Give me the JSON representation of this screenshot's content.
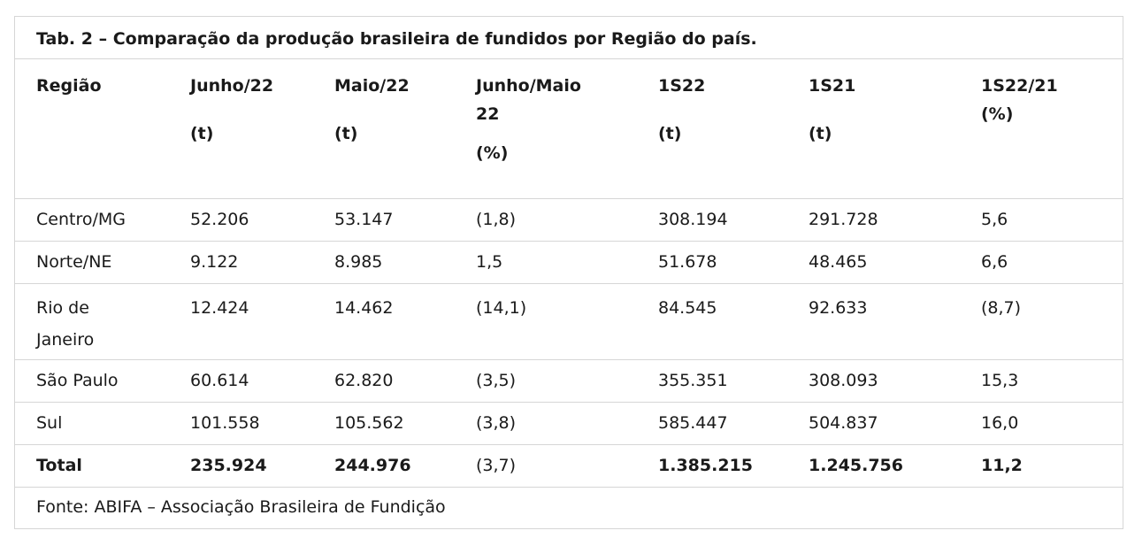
{
  "title": "Tab. 2 – Comparação da produção brasileira de fundidos por Região do país.",
  "headers": {
    "regiao": "Região",
    "junho22": "Junho/22",
    "junho22_unit": "(t)",
    "maio22": "Maio/22",
    "maio22_unit": "(t)",
    "junhomaio_l1": "Junho/Maio",
    "junhomaio_l2": "22",
    "junhomaio_unit": "(%)",
    "s22": "1S22",
    "s22_unit": "(t)",
    "s21": "1S21",
    "s21_unit": "(t)",
    "s2221": "1S22/21",
    "s2221_unit": "(%)"
  },
  "rows": [
    {
      "regiao": "Centro/MG",
      "junho22": "52.206",
      "maio22": "53.147",
      "var": "(1,8)",
      "s22": "308.194",
      "s21": "291.728",
      "var_s": "5,6"
    },
    {
      "regiao": "Norte/NE",
      "junho22": "9.122",
      "maio22": "8.985",
      "var": "1,5",
      "s22": "51.678",
      "s21": "48.465",
      "var_s": "6,6"
    },
    {
      "regiao_l1": "Rio de",
      "regiao_l2": "Janeiro",
      "junho22": "12.424",
      "maio22": "14.462",
      "var": "(14,1)",
      "s22": "84.545",
      "s21": "92.633",
      "var_s": "(8,7)"
    },
    {
      "regiao": "São Paulo",
      "junho22": "60.614",
      "maio22": "62.820",
      "var": "(3,5)",
      "s22": "355.351",
      "s21": "308.093",
      "var_s": "15,3"
    },
    {
      "regiao": "Sul",
      "junho22": "101.558",
      "maio22": "105.562",
      "var": "(3,8)",
      "s22": "585.447",
      "s21": "504.837",
      "var_s": "16,0"
    }
  ],
  "total": {
    "regiao": "Total",
    "junho22": "235.924",
    "maio22": "244.976",
    "var": "(3,7)",
    "s22": "1.385.215",
    "s21": "1.245.756",
    "var_s": "11,2"
  },
  "source": "Fonte: ABIFA – Associação Brasileira de Fundição"
}
